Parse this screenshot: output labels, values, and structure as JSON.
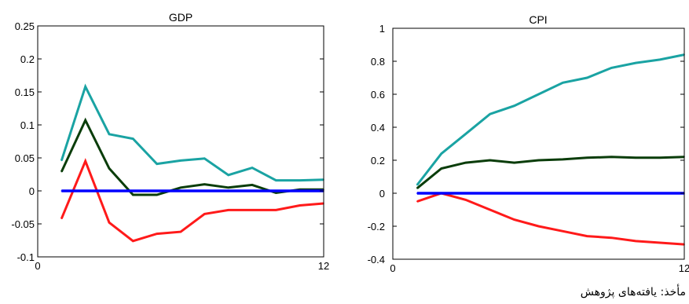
{
  "chart_data": [
    {
      "type": "line",
      "title": "GDP",
      "xlabel": "",
      "ylabel": "",
      "xlim": [
        0,
        12
      ],
      "ylim": [
        -0.1,
        0.25
      ],
      "x_ticks": [
        "0",
        "12"
      ],
      "y_ticks": [
        "0.25",
        "0.2",
        "0.15",
        "0.1",
        "0.05",
        "0",
        "-0.05",
        "-0.1"
      ],
      "x": [
        1,
        2,
        3,
        4,
        5,
        6,
        7,
        8,
        9,
        10,
        11,
        12
      ],
      "series": [
        {
          "color": "#1aa3a3",
          "values": [
            0.046,
            0.158,
            0.086,
            0.079,
            0.041,
            0.046,
            0.049,
            0.024,
            0.035,
            0.016,
            0.016,
            0.017
          ]
        },
        {
          "color": "#0a3d0a",
          "values": [
            0.029,
            0.107,
            0.034,
            -0.006,
            -0.006,
            0.005,
            0.01,
            0.005,
            0.009,
            -0.003,
            0.002,
            0.002
          ]
        },
        {
          "color": "#ff1a1a",
          "values": [
            -0.042,
            0.045,
            -0.048,
            -0.076,
            -0.065,
            -0.062,
            -0.035,
            -0.029,
            -0.029,
            -0.029,
            -0.022,
            -0.019
          ]
        },
        {
          "color": "#0000ff",
          "values": [
            0,
            0,
            0,
            0,
            0,
            0,
            0,
            0,
            0,
            0,
            0,
            0
          ]
        }
      ],
      "grid": false,
      "legend": "none"
    },
    {
      "type": "line",
      "title": "CPI",
      "xlabel": "",
      "ylabel": "",
      "xlim": [
        0,
        12
      ],
      "ylim": [
        -0.4,
        1
      ],
      "x_ticks": [
        "0",
        "12"
      ],
      "y_ticks": [
        "1",
        "0.8",
        "0.6",
        "0.4",
        "0.2",
        "0",
        "-0.2",
        "-0.4"
      ],
      "x": [
        1,
        2,
        3,
        4,
        5,
        6,
        7,
        8,
        9,
        10,
        11,
        12
      ],
      "series": [
        {
          "color": "#1aa3a3",
          "values": [
            0.05,
            0.24,
            0.36,
            0.48,
            0.53,
            0.6,
            0.67,
            0.7,
            0.76,
            0.79,
            0.81,
            0.84
          ]
        },
        {
          "color": "#0a3d0a",
          "values": [
            0.03,
            0.15,
            0.185,
            0.2,
            0.185,
            0.2,
            0.205,
            0.215,
            0.22,
            0.215,
            0.215,
            0.22
          ]
        },
        {
          "color": "#ff1a1a",
          "values": [
            -0.05,
            0.0,
            -0.04,
            -0.1,
            -0.16,
            -0.2,
            -0.23,
            -0.26,
            -0.27,
            -0.29,
            -0.3,
            -0.31
          ]
        },
        {
          "color": "#0000ff",
          "values": [
            0,
            0,
            0,
            0,
            0,
            0,
            0,
            0,
            0,
            0,
            0,
            0
          ]
        }
      ],
      "grid": false,
      "legend": "none"
    }
  ],
  "source_note": "مأخذ: یافته‌های پژوهش"
}
